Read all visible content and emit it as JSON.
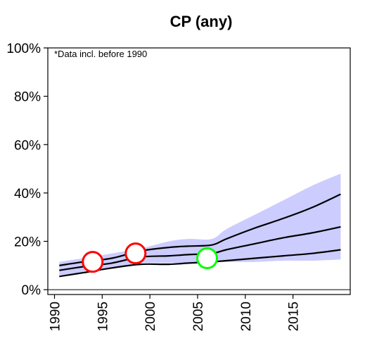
{
  "chart_data": {
    "type": "line",
    "title": "CP (any)",
    "annotation": "*Data incl. before 1990",
    "xlabel": "",
    "ylabel": "",
    "xlim": [
      1989.3,
      2021
    ],
    "ylim": [
      -0.02,
      1.0
    ],
    "x_ticks": [
      1990,
      1995,
      2000,
      2005,
      2010,
      2015
    ],
    "y_ticks": [
      0,
      0.2,
      0.4,
      0.6,
      0.8,
      1.0
    ],
    "y_tick_labels": [
      "0%",
      "20%",
      "40%",
      "60%",
      "80%",
      "100%"
    ],
    "grid": false,
    "legend": "none",
    "band": {
      "color": "#ccccff",
      "x": [
        1990.5,
        1993,
        1996,
        1999,
        2002,
        2004,
        2006.5,
        2008,
        2011,
        2014,
        2017,
        2020
      ],
      "lower": [
        0.06,
        0.07,
        0.09,
        0.11,
        0.11,
        0.11,
        0.115,
        0.115,
        0.115,
        0.12,
        0.12,
        0.125
      ],
      "upper": [
        0.115,
        0.13,
        0.15,
        0.17,
        0.2,
        0.21,
        0.21,
        0.25,
        0.31,
        0.37,
        0.43,
        0.48
      ]
    },
    "series": [
      {
        "color": "#000000",
        "x": [
          1990.5,
          1993,
          1996,
          1999,
          2002,
          2004,
          2006.5,
          2008,
          2011,
          2014,
          2017,
          2020
        ],
        "values": [
          0.1,
          0.115,
          0.13,
          0.16,
          0.175,
          0.18,
          0.185,
          0.21,
          0.255,
          0.295,
          0.34,
          0.395
        ]
      },
      {
        "color": "#000000",
        "x": [
          1990.5,
          1993,
          1996,
          1999,
          2002,
          2004,
          2006.5,
          2008,
          2011,
          2014,
          2017,
          2020
        ],
        "values": [
          0.08,
          0.095,
          0.11,
          0.135,
          0.14,
          0.145,
          0.15,
          0.165,
          0.19,
          0.215,
          0.235,
          0.26
        ]
      },
      {
        "color": "#000000",
        "x": [
          1990.5,
          1993,
          1996,
          1999,
          2002,
          2004,
          2006.5,
          2008,
          2011,
          2014,
          2017,
          2020
        ],
        "values": [
          0.055,
          0.07,
          0.09,
          0.105,
          0.105,
          0.11,
          0.115,
          0.12,
          0.13,
          0.14,
          0.15,
          0.165
        ]
      }
    ],
    "markers": [
      {
        "x": 1994,
        "y": 0.115,
        "color": "#ff0000"
      },
      {
        "x": 1998.5,
        "y": 0.15,
        "color": "#ff0000"
      },
      {
        "x": 2006,
        "y": 0.13,
        "color": "#00ff00"
      }
    ]
  }
}
